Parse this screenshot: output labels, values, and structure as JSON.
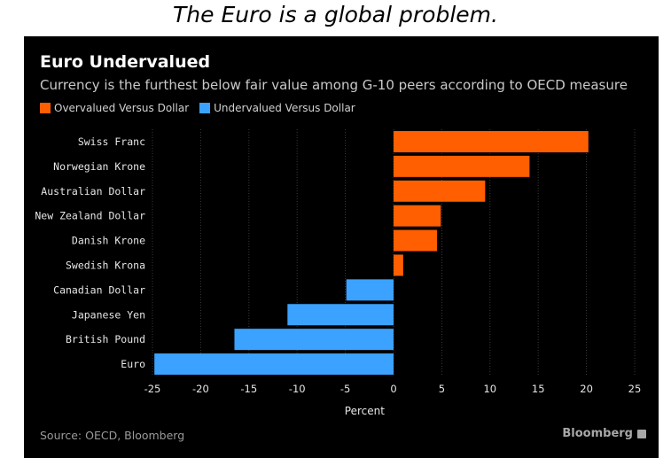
{
  "caption": "The Euro is a global problem.",
  "brand": "Bloomberg",
  "source": "Source: OECD, Bloomberg",
  "colors": {
    "overvalued": "#ff5f00",
    "undervalued": "#3ba2ff"
  },
  "chart_data": {
    "type": "bar",
    "orientation": "horizontal",
    "title": "Euro Undervalued",
    "subtitle": "Currency is the furthest below fair value among G-10 peers according to OECD measure",
    "xlabel": "Percent",
    "ylabel": "",
    "xlim": [
      -25,
      25
    ],
    "xticks": [
      -25,
      -20,
      -15,
      -10,
      -5,
      0,
      5,
      10,
      15,
      20,
      25
    ],
    "grid": true,
    "legend": [
      {
        "label": "Overvalued Versus Dollar",
        "color": "#ff5f00"
      },
      {
        "label": "Undervalued Versus Dollar",
        "color": "#3ba2ff"
      }
    ],
    "legend_position": "top-left",
    "categories": [
      "Swiss Franc",
      "Norwegian Krone",
      "Australian Dollar",
      "New Zealand Dollar",
      "Danish Krone",
      "Swedish Krona",
      "Canadian Dollar",
      "Japanese Yen",
      "British Pound",
      "Euro"
    ],
    "values": [
      20.2,
      14.1,
      9.5,
      4.9,
      4.5,
      1.0,
      -4.9,
      -11.0,
      -16.5,
      -24.8
    ]
  }
}
